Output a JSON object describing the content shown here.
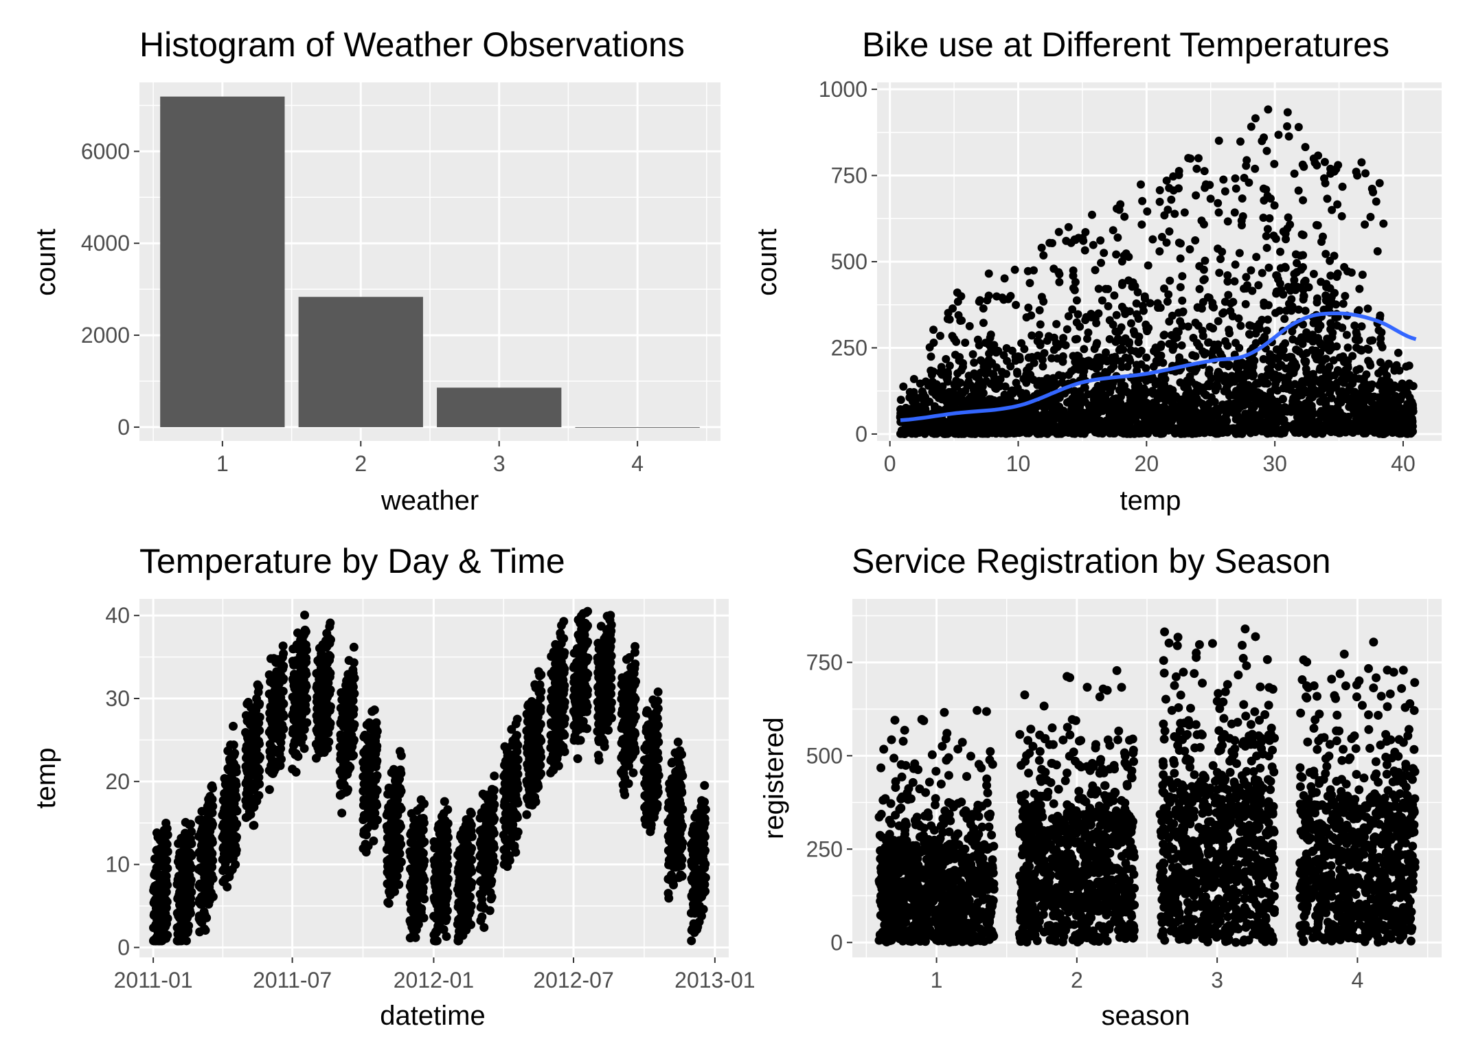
{
  "colors": {
    "panel": "#ebebeb",
    "grid": "#ffffff",
    "bar": "#595959",
    "point": "#000000",
    "smooth": "#3366ff",
    "tick": "#333333"
  },
  "chart_data": [
    {
      "type": "bar",
      "title": "Histogram of Weather Observations",
      "xlabel": "weather",
      "ylabel": "count",
      "categories": [
        "1",
        "2",
        "3",
        "4"
      ],
      "values": [
        7192,
        2834,
        859,
        1
      ],
      "xlim": [
        0.4,
        4.6
      ],
      "ylim": [
        -300,
        7500
      ],
      "yticks": [
        0,
        2000,
        4000,
        6000
      ],
      "yticklabels": [
        "0",
        "2000",
        "4000",
        "6000"
      ],
      "grid": true,
      "legend": "none"
    },
    {
      "type": "scatter",
      "title": "Bike use at Different Temperatures",
      "xlabel": "temp",
      "ylabel": "count",
      "xlim": [
        -1,
        43
      ],
      "ylim": [
        -20,
        1020
      ],
      "xticks": [
        0,
        10,
        20,
        30,
        40
      ],
      "xticklabels": [
        "0",
        "10",
        "20",
        "30",
        "40"
      ],
      "yticks": [
        0,
        250,
        500,
        750,
        1000
      ],
      "yticklabels": [
        "0",
        "250",
        "500",
        "750",
        "1000"
      ],
      "smooth": {
        "x": [
          0.82,
          5,
          10,
          15,
          20,
          25,
          28,
          32,
          35,
          38,
          41
        ],
        "y": [
          40,
          60,
          82,
          150,
          175,
          212,
          232,
          330,
          350,
          328,
          275
        ]
      },
      "grid": true,
      "legend": "none"
    },
    {
      "type": "scatter",
      "title": "Temperature by Day & Time",
      "xlabel": "datetime",
      "ylabel": "temp",
      "xlim": [
        "2010-12-14",
        "2013-01-19"
      ],
      "ylim": [
        -1.2,
        42
      ],
      "xticks": [
        "2011-01-01",
        "2011-07-01",
        "2012-01-01",
        "2012-07-01",
        "2013-01-01"
      ],
      "xticklabels": [
        "2011-01",
        "2011-07",
        "2012-01",
        "2012-07",
        "2013-01"
      ],
      "yticks": [
        0,
        10,
        20,
        30,
        40
      ],
      "yticklabels": [
        "0",
        "10",
        "20",
        "30",
        "40"
      ],
      "grid": true,
      "legend": "none"
    },
    {
      "type": "scatter",
      "title": "Service Registration by Season",
      "xlabel": "season",
      "ylabel": "registered",
      "categories": [
        "1",
        "2",
        "3",
        "4"
      ],
      "xlim": [
        0.4,
        4.6
      ],
      "ylim": [
        -40,
        920
      ],
      "yticks": [
        0,
        250,
        500,
        750
      ],
      "yticklabels": [
        "0",
        "250",
        "500",
        "750"
      ],
      "grid": true,
      "legend": "none"
    }
  ]
}
